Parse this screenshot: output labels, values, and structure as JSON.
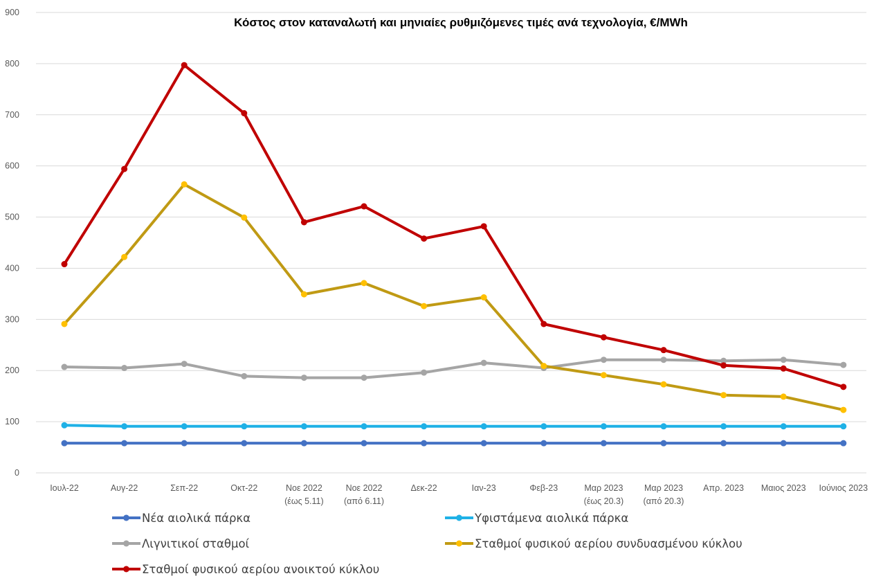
{
  "chart_data": {
    "type": "line",
    "title": "Κόστος στον καταναλωτή και μηνιαίες ρυθμιζόμενες τιμές ανά τεχνολογία, €/MWh",
    "xlabel": "",
    "ylabel": "",
    "ylim": [
      0,
      900
    ],
    "yticks": [
      "0",
      "100",
      "200",
      "300",
      "400",
      "500",
      "600",
      "700",
      "800",
      "900"
    ],
    "grid": true,
    "legend_position": "bottom",
    "categories": [
      [
        "Ιουλ-22"
      ],
      [
        "Αυγ-22"
      ],
      [
        "Σεπ-22"
      ],
      [
        "Οκτ-22"
      ],
      [
        "Νοε 2022",
        "(έως 5.11)"
      ],
      [
        "Νοε 2022",
        "(από 6.11)"
      ],
      [
        "Δεκ-22"
      ],
      [
        "Ιαν-23"
      ],
      [
        "Φεβ-23"
      ],
      [
        "Μαρ 2023",
        "(έως 20.3)"
      ],
      [
        "Μαρ 2023",
        "(από 20.3)"
      ],
      [
        "Απρ. 2023"
      ],
      [
        "Μαιος 2023"
      ],
      [
        "Ιούνιος 2023"
      ]
    ],
    "series": [
      {
        "name": "Νέα αιολικά πάρκα",
        "color": "#4472c4",
        "values": [
          58,
          58,
          58,
          58,
          58,
          58,
          58,
          58,
          58,
          58,
          58,
          58,
          58,
          58
        ]
      },
      {
        "name": "Υφιστάμενα αιολικά πάρκα",
        "color": "#1fb1e6",
        "values": [
          93,
          91,
          91,
          91,
          91,
          91,
          91,
          91,
          91,
          91,
          91,
          91,
          91,
          91
        ]
      },
      {
        "name": "Λιγνιτικοί σταθμοί",
        "color": "#a5a5a5",
        "values": [
          207,
          205,
          213,
          189,
          186,
          186,
          196,
          215,
          205,
          221,
          221,
          219,
          221,
          211
        ]
      },
      {
        "name": "Σταθμοί φυσικού αερίου συνδυασμένου κύκλου",
        "color": "#c09a14",
        "marker_color": "#ffc000",
        "values": [
          291,
          422,
          564,
          499,
          349,
          371,
          326,
          343,
          209,
          191,
          173,
          152,
          149,
          123
        ]
      },
      {
        "name": "Σταθμοί φυσικού αερίου ανοικτού κύκλου",
        "color": "#c00000",
        "values": [
          408,
          594,
          797,
          703,
          490,
          521,
          458,
          482,
          291,
          265,
          240,
          210,
          204,
          168
        ]
      }
    ]
  }
}
